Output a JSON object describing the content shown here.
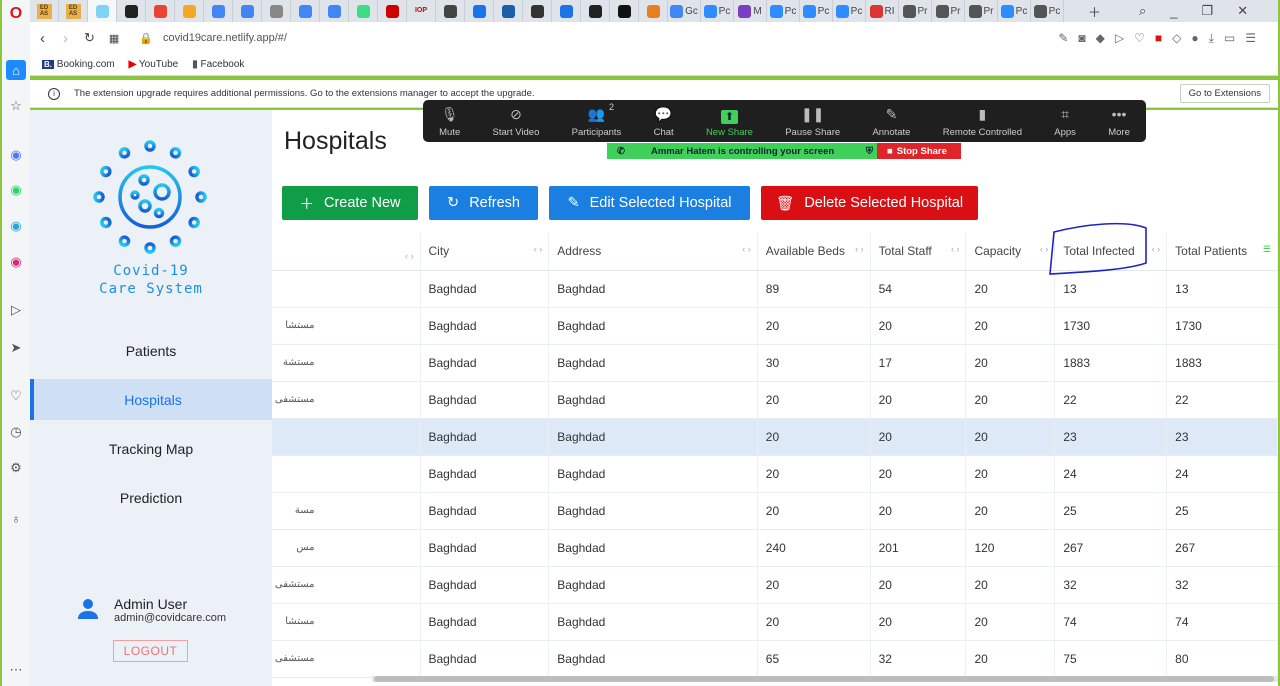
{
  "browser": {
    "tabs": [
      "ED AS",
      "ED AS",
      "",
      "",
      "M",
      "",
      "",
      "",
      "",
      "",
      "",
      "",
      "",
      "IOP",
      "",
      "C",
      "sds",
      "",
      "I",
      "",
      "",
      "E",
      "Gc",
      "Pc",
      "M",
      "Pc",
      "Pc",
      "Pc",
      "RI",
      "Pr",
      "Pr",
      "Pr",
      "Pc",
      "Pc"
    ],
    "url": "covid19care.netlify.app/#/",
    "bookmarks": [
      "Booking.com",
      "YouTube",
      "Facebook"
    ],
    "notice": "The extension upgrade requires additional permissions. Go to the extensions manager to accept the upgrade.",
    "notice_button": "Go to Extensions"
  },
  "zoom": {
    "items": [
      {
        "label": "Mute",
        "icon": "mic-icon"
      },
      {
        "label": "Start Video",
        "icon": "video-off-icon"
      },
      {
        "label": "Participants",
        "icon": "participants-icon",
        "count": "2"
      },
      {
        "label": "Chat",
        "icon": "chat-icon"
      },
      {
        "label": "New Share",
        "icon": "share-icon"
      },
      {
        "label": "Pause Share",
        "icon": "pause-icon"
      },
      {
        "label": "Annotate",
        "icon": "pen-icon"
      },
      {
        "label": "Remote Controlled",
        "icon": "mouse-icon"
      },
      {
        "label": "Apps",
        "icon": "apps-icon"
      },
      {
        "label": "More",
        "icon": "more-icon"
      }
    ],
    "control_message": "Ammar Hatem is controlling your screen",
    "stop_share": "Stop Share"
  },
  "app": {
    "logo_text": "Covid-19 Care System",
    "nav": [
      "Patients",
      "Hospitals",
      "Tracking Map",
      "Prediction"
    ],
    "active_nav": "Hospitals",
    "user": {
      "name": "Admin User",
      "email": "admin@covidcare.com",
      "logout": "LOGOUT"
    },
    "page_title": "Hospitals",
    "buttons": {
      "create": "Create New",
      "refresh": "Refresh",
      "edit": "Edit Selected Hospital",
      "delete": "Delete Selected Hospital"
    },
    "columns": [
      "",
      "City",
      "Address",
      "Available Beds",
      "Total Staff",
      "Capacity",
      "Total Infected",
      "Total Patients"
    ],
    "rows": [
      [
        "",
        "Baghdad",
        "Baghdad",
        "89",
        "54",
        "20",
        "13",
        "13"
      ],
      [
        "مستشا",
        "Baghdad",
        "Baghdad",
        "20",
        "20",
        "20",
        "1730",
        "1730"
      ],
      [
        "مستشة",
        "Baghdad",
        "Baghdad",
        "30",
        "17",
        "20",
        "1883",
        "1883"
      ],
      [
        "مستشفى",
        "Baghdad",
        "Baghdad",
        "20",
        "20",
        "20",
        "22",
        "22"
      ],
      [
        "",
        "Baghdad",
        "Baghdad",
        "20",
        "20",
        "20",
        "23",
        "23"
      ],
      [
        "",
        "Baghdad",
        "Baghdad",
        "20",
        "20",
        "20",
        "24",
        "24"
      ],
      [
        "مسة",
        "Baghdad",
        "Baghdad",
        "20",
        "20",
        "20",
        "25",
        "25"
      ],
      [
        "مس",
        "Baghdad",
        "Baghdad",
        "240",
        "201",
        "120",
        "267",
        "267"
      ],
      [
        "مستشفى ا",
        "Baghdad",
        "Baghdad",
        "20",
        "20",
        "20",
        "32",
        "32"
      ],
      [
        "مستشا",
        "Baghdad",
        "Baghdad",
        "20",
        "20",
        "20",
        "74",
        "74"
      ],
      [
        "مستشفى",
        "Baghdad",
        "Baghdad",
        "65",
        "32",
        "20",
        "75",
        "80"
      ]
    ],
    "selected_row": 4
  },
  "colors": {
    "accent": "#1a73e8",
    "create": "#0f9d47",
    "refresh": "#1a7fe0",
    "delete": "#d90f14",
    "zoom_green": "#3fd05a"
  }
}
